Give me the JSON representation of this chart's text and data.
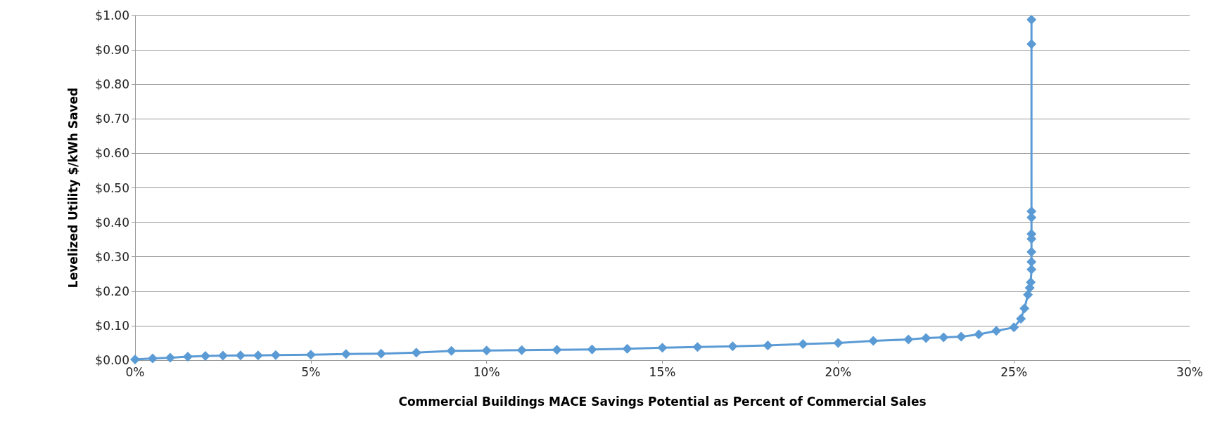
{
  "chart_data": {
    "type": "line",
    "xlabel": "Commercial Buildings MACE Savings Potential as Percent of Commercial Sales",
    "ylabel": "Levelized Utility $/kWh Saved",
    "marker": "diamond",
    "grid": "y",
    "xlim": [
      0,
      30
    ],
    "xticks": [
      {
        "value": 0,
        "label": "0%"
      },
      {
        "value": 5,
        "label": "5%"
      },
      {
        "value": 10,
        "label": "10%"
      },
      {
        "value": 15,
        "label": "15%"
      },
      {
        "value": 20,
        "label": "20%"
      },
      {
        "value": 25,
        "label": "25%"
      },
      {
        "value": 30,
        "label": "30%"
      }
    ],
    "ylim": [
      0,
      1
    ],
    "yticks": [
      {
        "value": 0,
        "label": "$0.00"
      },
      {
        "value": 0.1,
        "label": "$0.10"
      },
      {
        "value": 0.2,
        "label": "$0.20"
      },
      {
        "value": 0.3,
        "label": "$0.30"
      },
      {
        "value": 0.4,
        "label": "$0.40"
      },
      {
        "value": 0.5,
        "label": "$0.50"
      },
      {
        "value": 0.6,
        "label": "$0.60"
      },
      {
        "value": 0.7,
        "label": "$0.70"
      },
      {
        "value": 0.8,
        "label": "$0.80"
      },
      {
        "value": 0.9,
        "label": "$0.90"
      },
      {
        "value": 1,
        "label": "$1.00"
      }
    ],
    "series": [
      {
        "color": "#5b9bd5",
        "x": [
          0,
          0.5,
          1,
          1.5,
          2,
          2.5,
          3,
          3.5,
          4,
          5,
          6,
          7,
          8,
          9,
          10,
          11,
          12,
          13,
          14,
          15,
          16,
          17,
          18,
          19,
          20,
          21,
          22,
          22.5,
          23,
          23.5,
          24,
          24.5,
          25,
          25.2,
          25.3,
          25.4,
          25.45,
          25.48,
          25.5,
          25.5,
          25.5,
          25.5,
          25.5,
          25.5,
          25.5,
          25.5,
          25.5
        ],
        "values": [
          0.002,
          0.005,
          0.007,
          0.01,
          0.012,
          0.013,
          0.014,
          0.014,
          0.015,
          0.016,
          0.018,
          0.019,
          0.022,
          0.027,
          0.028,
          0.029,
          0.03,
          0.031,
          0.033,
          0.036,
          0.038,
          0.04,
          0.043,
          0.047,
          0.05,
          0.056,
          0.06,
          0.064,
          0.066,
          0.068,
          0.075,
          0.085,
          0.095,
          0.12,
          0.15,
          0.19,
          0.21,
          0.226,
          0.263,
          0.285,
          0.314,
          0.352,
          0.366,
          0.414,
          0.432,
          0.917,
          0.988
        ]
      }
    ]
  }
}
